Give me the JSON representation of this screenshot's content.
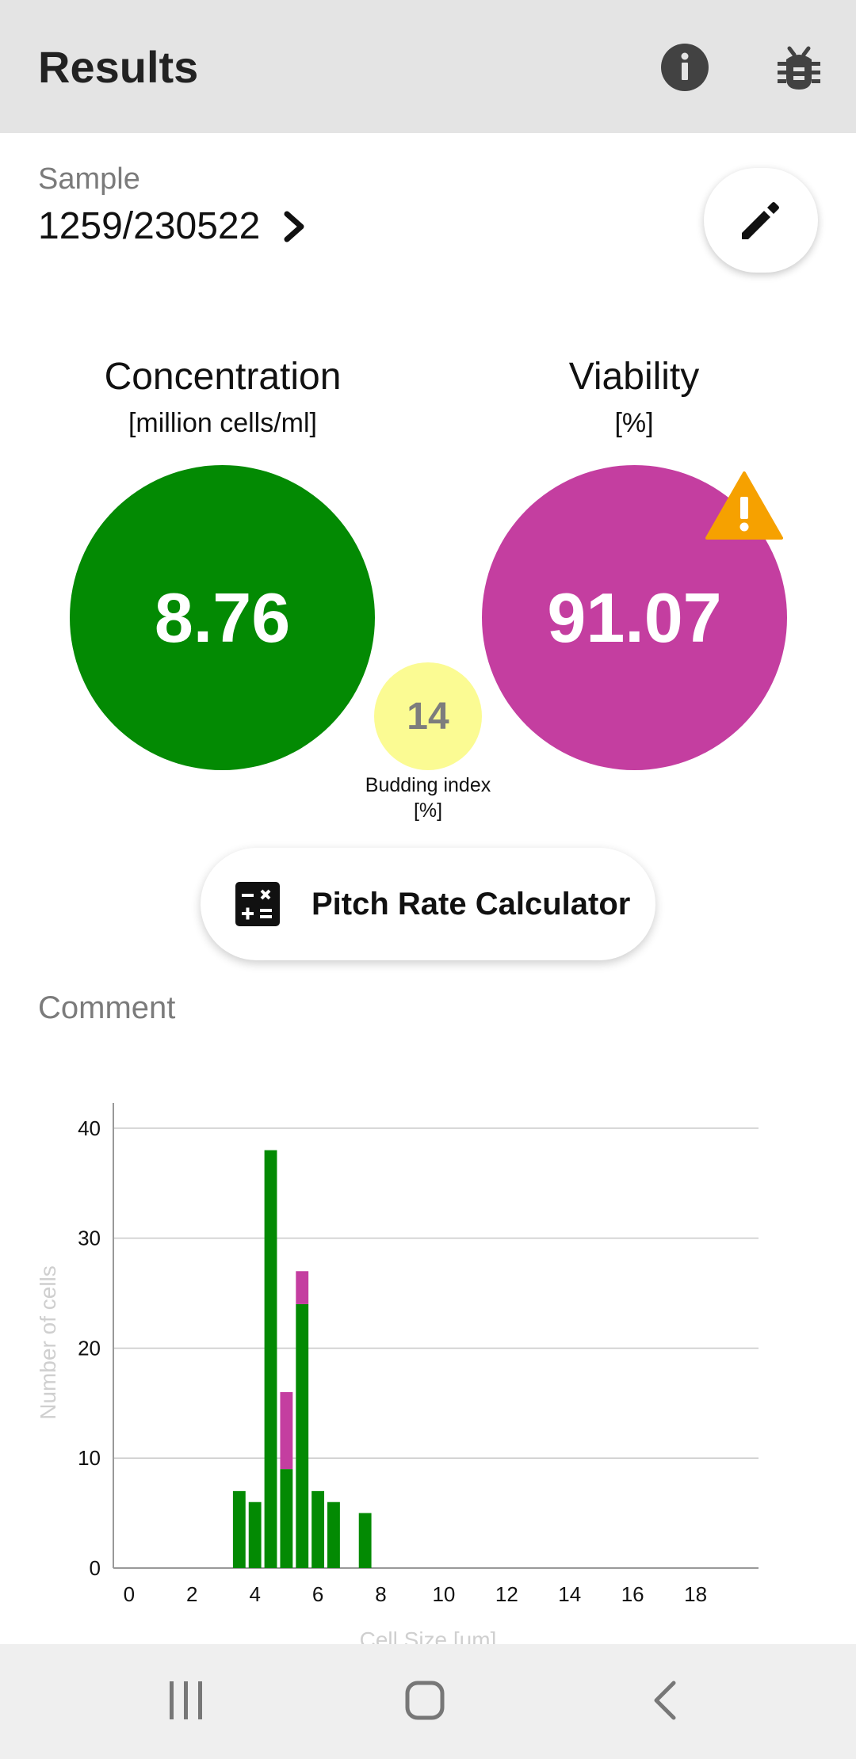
{
  "app_bar": {
    "title": "Results",
    "actions": [
      "info-icon",
      "bug-icon"
    ]
  },
  "sample": {
    "label": "Sample",
    "value": "1259/230522"
  },
  "concentration": {
    "title": "Concentration",
    "unit": "[million cells/ml]",
    "value": "8.76",
    "color": "#038a03"
  },
  "viability": {
    "title": "Viability",
    "unit": "[%]",
    "value": "91.07",
    "color": "#c43ea0",
    "warning_color": "#f6a100"
  },
  "budding": {
    "value": "14",
    "label_line1": "Budding index",
    "label_line2": "[%]",
    "color": "#fbfb93"
  },
  "pitch_rate_button": {
    "label": "Pitch Rate Calculator"
  },
  "comment": {
    "label": "Comment"
  },
  "chart_data": {
    "type": "bar",
    "stacked": true,
    "xlabel": "Cell Size [um]",
    "ylabel": "Number of cells",
    "xlim": [
      -0.5,
      20
    ],
    "ylim": [
      0,
      41
    ],
    "x_ticks": [
      0,
      2,
      4,
      6,
      8,
      10,
      12,
      14,
      16,
      18
    ],
    "y_ticks": [
      0,
      10,
      20,
      30,
      40
    ],
    "grid": true,
    "bin_width": 0.5,
    "x": [
      3.5,
      4.0,
      4.5,
      5.0,
      5.5,
      6.0,
      6.5,
      7.5
    ],
    "series": [
      {
        "color": "#038a03",
        "values": [
          7,
          6,
          38,
          9,
          24,
          7,
          6,
          5
        ]
      },
      {
        "color": "#c43ea0",
        "values": [
          0,
          0,
          0,
          7,
          3,
          0,
          0,
          0
        ]
      }
    ]
  },
  "nav_bar": {
    "items": [
      "recent-apps-icon",
      "home-icon",
      "back-icon"
    ]
  }
}
